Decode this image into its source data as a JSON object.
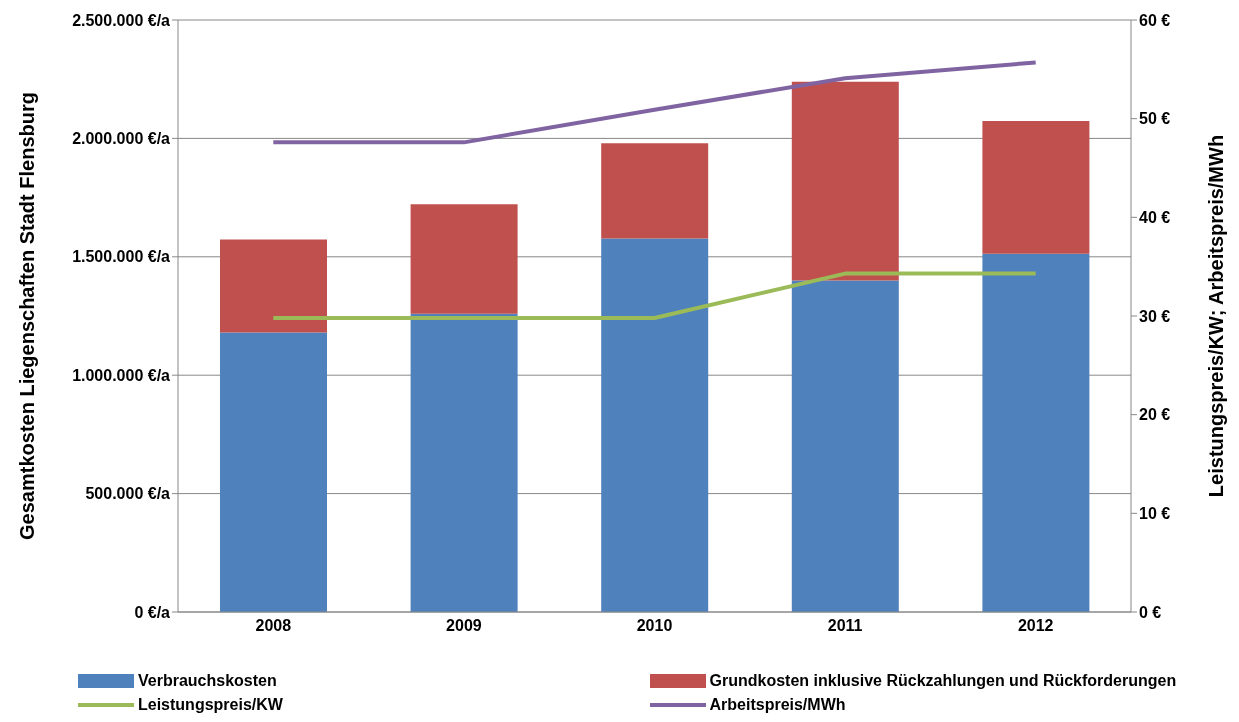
{
  "chart_data": {
    "type": "bar",
    "stacked": true,
    "categories": [
      "2008",
      "2009",
      "2010",
      "2011",
      "2012"
    ],
    "ylabel": "Gesamtkosten Liegenschaften Stadt Flensburg",
    "y2label": "Leistungspreis/KW; Arbeitspreis/MWh",
    "ylim": [
      0,
      2500000
    ],
    "yticks": [
      {
        "value": 0,
        "label": "0 €/a"
      },
      {
        "value": 500000,
        "label": "500.000 €/a"
      },
      {
        "value": 1000000,
        "label": "1.000.000 €/a"
      },
      {
        "value": 1500000,
        "label": "1.500.000 €/a"
      },
      {
        "value": 2000000,
        "label": "2.000.000 €/a"
      },
      {
        "value": 2500000,
        "label": "2.500.000 €/a"
      }
    ],
    "y2lim": [
      0,
      60
    ],
    "y2ticks": [
      {
        "value": 0,
        "label": "0 €"
      },
      {
        "value": 10,
        "label": "10 €"
      },
      {
        "value": 20,
        "label": "20 €"
      },
      {
        "value": 30,
        "label": "30 €"
      },
      {
        "value": 40,
        "label": "40 €"
      },
      {
        "value": 50,
        "label": "50 €"
      },
      {
        "value": 60,
        "label": "60 €"
      }
    ],
    "grid": "y",
    "legend": "bottom",
    "marker": "none",
    "series": [
      {
        "name": "Verbrauchskosten",
        "color": "#4f81bd",
        "values": [
          1180000,
          1260000,
          1577000,
          1400000,
          1513000
        ]
      },
      {
        "name": "Grundkosten inklusive Rückzahlungen und Rückforderungen",
        "color": "#c0504d",
        "values": [
          393000,
          462000,
          402000,
          839000,
          560000
        ]
      },
      {
        "name": "Leistungspreis/KW",
        "type": "line",
        "axis": "y2",
        "color": "#9bbb59",
        "values": [
          29.8,
          29.8,
          29.8,
          34.3,
          34.3
        ]
      },
      {
        "name": "Arbeitspreis/MWh",
        "type": "line",
        "axis": "y2",
        "color": "#8064a2",
        "values": [
          47.6,
          47.6,
          50.9,
          54.1,
          55.7
        ]
      }
    ]
  }
}
